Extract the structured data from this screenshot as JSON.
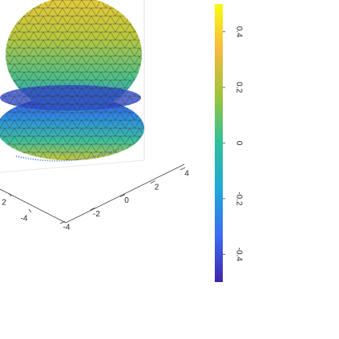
{
  "chart_data": {
    "type": "surface",
    "xticks": [
      -4,
      2
    ],
    "yticks": [
      -4,
      -2,
      0,
      2,
      4
    ],
    "colorbar": {
      "lim": [
        -0.5,
        0.5
      ],
      "ticks": [
        0.4,
        0.2,
        0,
        -0.2,
        -0.4
      ],
      "colors": [
        "#3e26a8",
        "#3d6cf3",
        "#1fa8d9",
        "#2ec09b",
        "#9bc43a",
        "#f6b93e",
        "#f9fb0e"
      ]
    }
  }
}
